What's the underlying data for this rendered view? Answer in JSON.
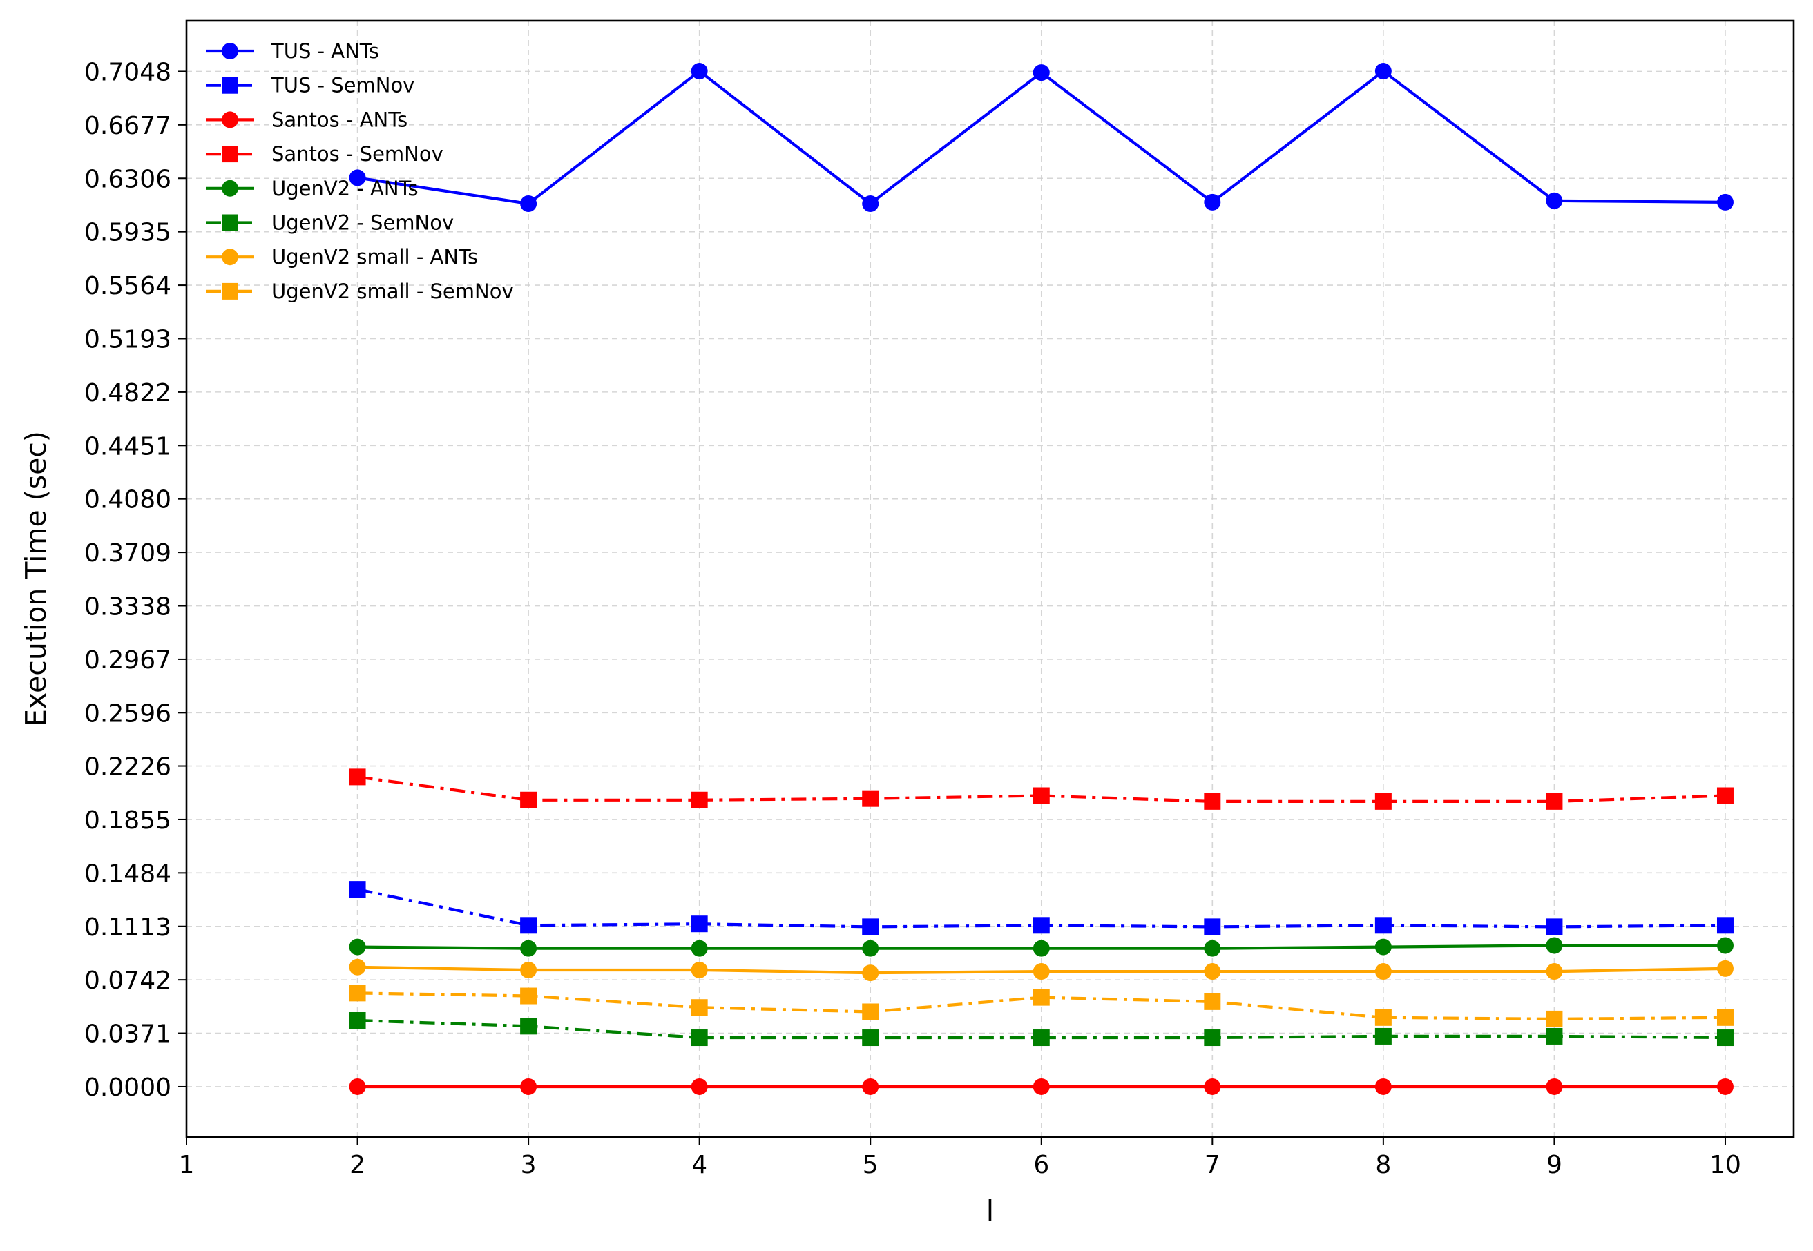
{
  "chart_data": {
    "type": "line",
    "title": "",
    "xlabel": "l",
    "ylabel": "Execution Time (sec)",
    "xlim": [
      1,
      10.4
    ],
    "ylim": [
      -0.035,
      0.74
    ],
    "x_ticks": [
      1,
      2,
      3,
      4,
      5,
      6,
      7,
      8,
      9,
      10
    ],
    "y_ticks": [
      "0.0000",
      "0.0371",
      "0.0742",
      "0.1113",
      "0.1484",
      "0.1855",
      "0.2226",
      "0.2596",
      "0.2967",
      "0.3338",
      "0.3709",
      "0.4080",
      "0.4451",
      "0.4822",
      "0.5193",
      "0.5564",
      "0.5935",
      "0.6306",
      "0.6677",
      "0.7048"
    ],
    "grid": true,
    "legend_position": "top-left",
    "x": [
      2,
      3,
      4,
      5,
      6,
      7,
      8,
      9,
      10
    ],
    "series": [
      {
        "name": "TUS - ANTs",
        "color": "#0000ff",
        "marker": "circle",
        "linestyle": "solid",
        "values": [
          0.631,
          0.613,
          0.705,
          0.613,
          0.704,
          0.614,
          0.705,
          0.615,
          0.614
        ]
      },
      {
        "name": "TUS - SemNov",
        "color": "#0000ff",
        "marker": "square",
        "linestyle": "dashdot",
        "values": [
          0.137,
          0.112,
          0.113,
          0.111,
          0.112,
          0.111,
          0.112,
          0.111,
          0.112
        ]
      },
      {
        "name": "Santos - ANTs",
        "color": "#ff0000",
        "marker": "circle",
        "linestyle": "solid",
        "values": [
          0.0,
          0.0,
          0.0,
          0.0,
          0.0,
          0.0,
          0.0,
          0.0,
          0.0
        ]
      },
      {
        "name": "Santos - SemNov",
        "color": "#ff0000",
        "marker": "square",
        "linestyle": "dashdot",
        "values": [
          0.215,
          0.199,
          0.199,
          0.2,
          0.202,
          0.198,
          0.198,
          0.198,
          0.202
        ]
      },
      {
        "name": "UgenV2 - ANTs",
        "color": "#008000",
        "marker": "circle",
        "linestyle": "solid",
        "values": [
          0.097,
          0.096,
          0.096,
          0.096,
          0.096,
          0.096,
          0.097,
          0.098,
          0.098
        ]
      },
      {
        "name": "UgenV2 - SemNov",
        "color": "#008000",
        "marker": "square",
        "linestyle": "dashdot",
        "values": [
          0.046,
          0.042,
          0.034,
          0.034,
          0.034,
          0.034,
          0.035,
          0.035,
          0.034
        ]
      },
      {
        "name": "UgenV2 small - ANTs",
        "color": "#ffa500",
        "marker": "circle",
        "linestyle": "solid",
        "values": [
          0.083,
          0.081,
          0.081,
          0.079,
          0.08,
          0.08,
          0.08,
          0.08,
          0.082
        ]
      },
      {
        "name": "UgenV2 small - SemNov",
        "color": "#ffa500",
        "marker": "square",
        "linestyle": "dashdot",
        "values": [
          0.065,
          0.063,
          0.055,
          0.052,
          0.062,
          0.059,
          0.048,
          0.047,
          0.048
        ]
      }
    ]
  }
}
